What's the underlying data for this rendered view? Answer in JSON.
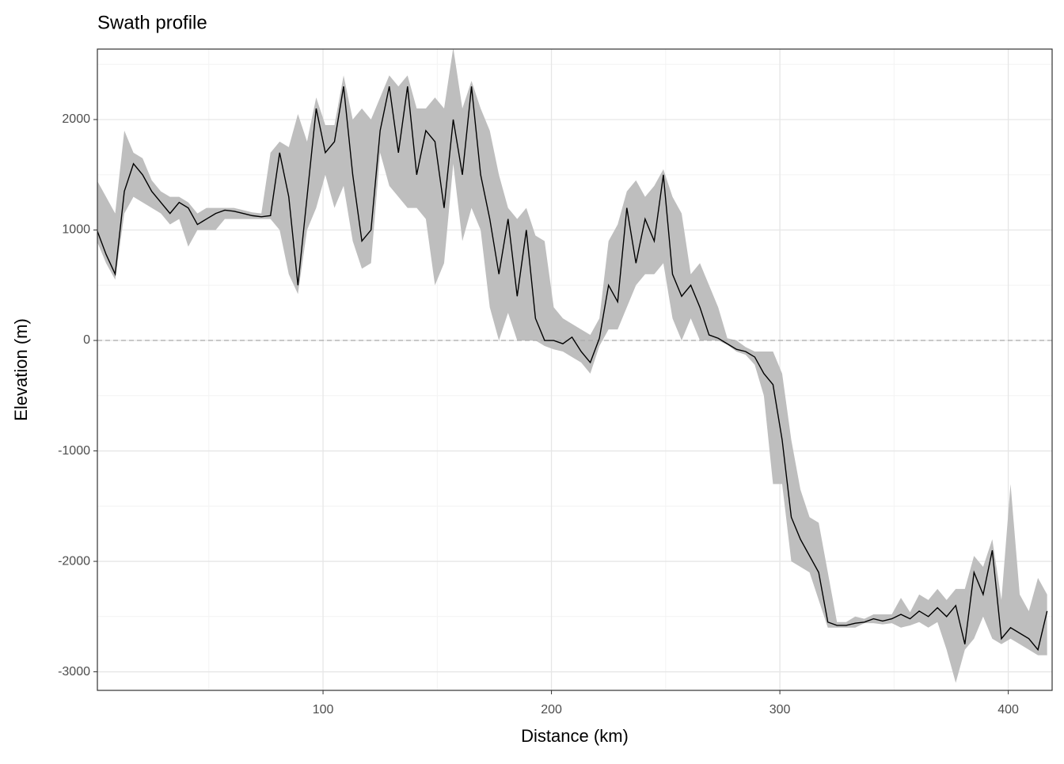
{
  "chart_data": {
    "type": "ribbon-line",
    "title": "Swath profile",
    "xlabel": "Distance (km)",
    "ylabel": "Elevation (m)",
    "x": [
      1,
      5,
      9,
      13,
      17,
      21,
      25,
      29,
      33,
      37,
      41,
      45,
      49,
      53,
      57,
      61,
      65,
      69,
      73,
      77,
      81,
      85,
      89,
      93,
      97,
      101,
      105,
      109,
      113,
      117,
      121,
      125,
      129,
      133,
      137,
      141,
      145,
      149,
      153,
      157,
      161,
      165,
      169,
      173,
      177,
      181,
      185,
      189,
      193,
      197,
      201,
      205,
      209,
      213,
      217,
      221,
      225,
      229,
      233,
      237,
      241,
      245,
      249,
      253,
      257,
      261,
      265,
      269,
      273,
      277,
      281,
      285,
      289,
      293,
      297,
      301,
      305,
      309,
      313,
      317,
      321,
      325,
      329,
      333,
      337,
      341,
      345,
      349,
      353,
      357,
      361,
      365,
      369,
      373,
      377,
      381,
      385,
      389,
      393,
      397,
      401,
      405,
      409,
      413,
      417
    ],
    "values": [
      1000,
      780,
      600,
      1350,
      1600,
      1500,
      1350,
      1250,
      1150,
      1250,
      1200,
      1050,
      1100,
      1150,
      1180,
      1170,
      1150,
      1130,
      1120,
      1130,
      1700,
      1300,
      500,
      1300,
      2100,
      1700,
      1800,
      2300,
      1500,
      900,
      1000,
      1900,
      2300,
      1700,
      2300,
      1500,
      1900,
      1800,
      1200,
      2000,
      1500,
      2300,
      1500,
      1100,
      600,
      1100,
      400,
      1000,
      200,
      0,
      0,
      -30,
      30,
      -100,
      -200,
      20,
      500,
      350,
      1200,
      700,
      1100,
      900,
      1500,
      600,
      400,
      500,
      300,
      50,
      20,
      -30,
      -80,
      -100,
      -150,
      -300,
      -400,
      -900,
      -1600,
      -1800,
      -1950,
      -2100,
      -2550,
      -2580,
      -2580,
      -2560,
      -2550,
      -2520,
      -2540,
      -2520,
      -2480,
      -2520,
      -2450,
      -2500,
      -2420,
      -2500,
      -2400,
      -2750,
      -2100,
      -2300,
      -1900,
      -2700,
      -2600,
      -2650,
      -2700,
      -2800,
      -2450
    ],
    "lower": [
      900,
      700,
      550,
      1150,
      1300,
      1250,
      1200,
      1150,
      1050,
      1100,
      850,
      1000,
      1000,
      1000,
      1100,
      1100,
      1100,
      1100,
      1100,
      1100,
      1000,
      600,
      420,
      1000,
      1200,
      1500,
      1200,
      1400,
      900,
      650,
      700,
      1700,
      1400,
      1300,
      1200,
      1200,
      1100,
      500,
      700,
      1600,
      900,
      1200,
      1000,
      300,
      0,
      250,
      0,
      0,
      0,
      -50,
      -80,
      -100,
      -150,
      -200,
      -300,
      -50,
      100,
      100,
      300,
      500,
      600,
      600,
      700,
      200,
      0,
      200,
      0,
      0,
      0,
      -40,
      -100,
      -130,
      -220,
      -500,
      -1300,
      -1300,
      -2000,
      -2050,
      -2100,
      -2350,
      -2600,
      -2600,
      -2600,
      -2600,
      -2560,
      -2560,
      -2570,
      -2560,
      -2600,
      -2580,
      -2550,
      -2600,
      -2550,
      -2800,
      -3100,
      -2800,
      -2700,
      -2500,
      -2700,
      -2750,
      -2700,
      -2750,
      -2800,
      -2850,
      -2850
    ],
    "upper": [
      1450,
      1300,
      1150,
      1900,
      1700,
      1650,
      1450,
      1350,
      1300,
      1300,
      1250,
      1150,
      1200,
      1200,
      1200,
      1200,
      1180,
      1160,
      1150,
      1700,
      1800,
      1750,
      2050,
      1800,
      2200,
      1950,
      1950,
      2400,
      2000,
      2100,
      2000,
      2200,
      2400,
      2300,
      2400,
      2100,
      2100,
      2200,
      2100,
      2650,
      2100,
      2350,
      2100,
      1900,
      1500,
      1200,
      1100,
      1200,
      950,
      900,
      300,
      200,
      150,
      100,
      50,
      200,
      900,
      1050,
      1350,
      1450,
      1300,
      1400,
      1550,
      1300,
      1150,
      600,
      700,
      500,
      300,
      20,
      0,
      -60,
      -100,
      -100,
      -100,
      -300,
      -900,
      -1350,
      -1600,
      -1650,
      -2100,
      -2550,
      -2550,
      -2500,
      -2520,
      -2480,
      -2480,
      -2480,
      -2330,
      -2460,
      -2300,
      -2350,
      -2250,
      -2350,
      -2250,
      -2250,
      -1950,
      -2050,
      -1800,
      -2350,
      -1300,
      -2300,
      -2450,
      -2150,
      -2300
    ],
    "line_color": "#000000",
    "band_color": "#bebebe",
    "xlim": [
      1.2,
      419.2
    ],
    "ylim": [
      -3168,
      2638
    ],
    "xticks": [
      100,
      200,
      300,
      400
    ],
    "yticks": [
      -3000,
      -2000,
      -1000,
      0,
      1000,
      2000
    ],
    "x_minor_ticks": [
      50,
      150,
      250,
      350
    ],
    "y_minor_ticks": [
      -2500,
      -1500,
      -500,
      500,
      1500,
      2500
    ],
    "hline": 0,
    "grid": true
  }
}
